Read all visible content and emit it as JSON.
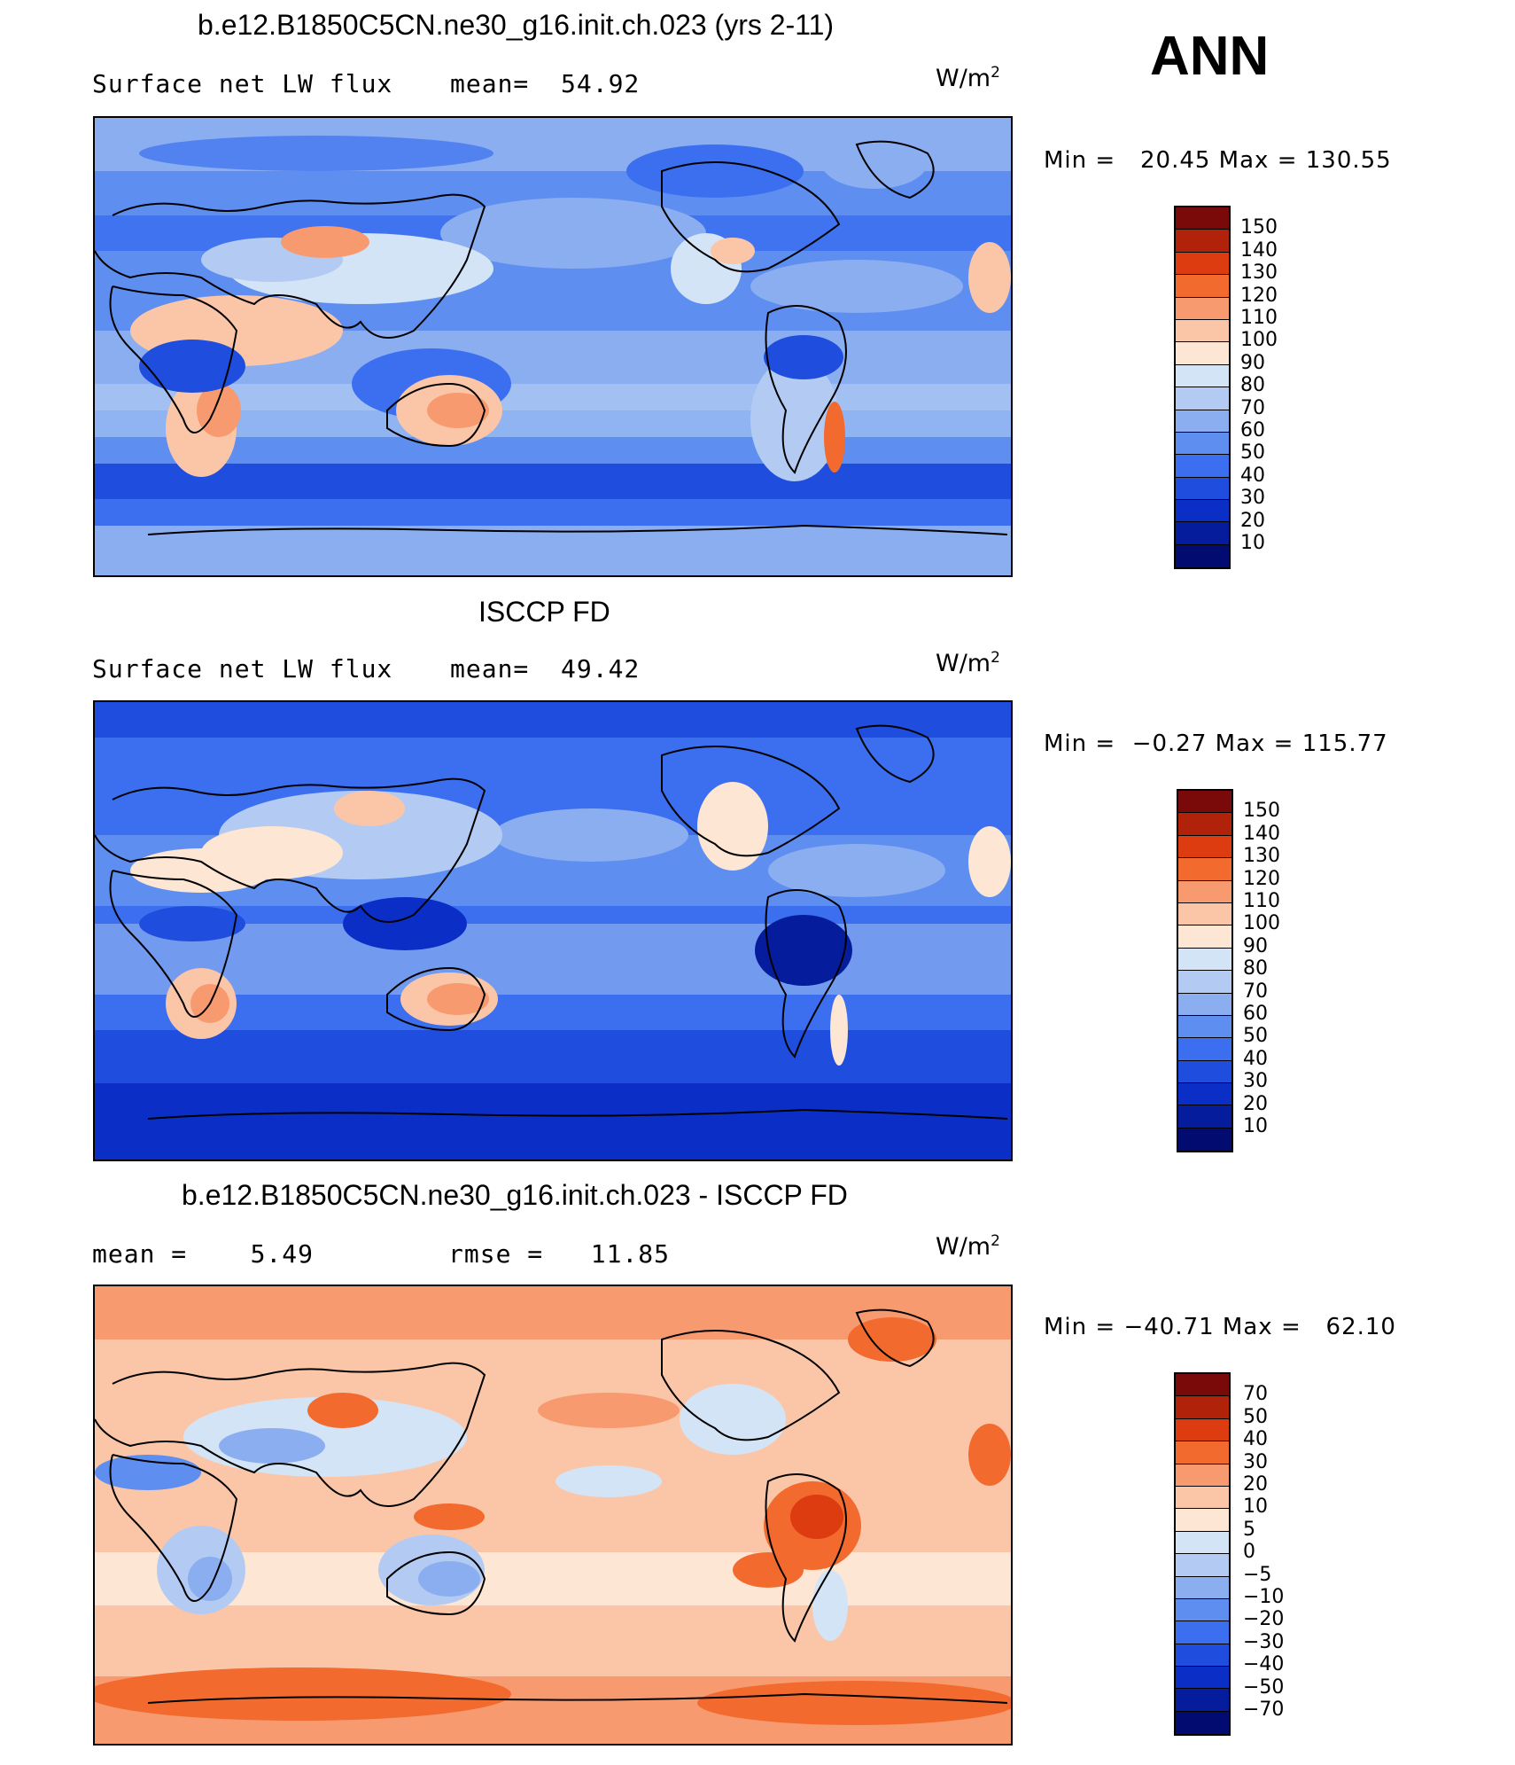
{
  "season_label": "ANN",
  "panels": [
    {
      "title": "b.e12.B1850C5CN.ne30_g16.init.ch.023 (yrs 2-11)",
      "left_text": "Surface net LW flux",
      "right_text": "mean=  54.92",
      "units": "W/m",
      "units_exp": "2",
      "minmax": "Min =   20.45 Max = 130.55",
      "colorbar": {
        "colors": [
          "#7a0a0a",
          "#b0220a",
          "#dd3b10",
          "#f26a2e",
          "#f79a70",
          "#fbc6a8",
          "#fde6d3",
          "#d4e4f7",
          "#b3cbf3",
          "#8aaef0",
          "#5e8ff0",
          "#3b6ff0",
          "#1f4ede",
          "#0b2fc6",
          "#051c9c",
          "#020c70"
        ],
        "labels": [
          "150",
          "140",
          "130",
          "120",
          "110",
          "100",
          "90",
          "80",
          "70",
          "60",
          "50",
          "40",
          "30",
          "20",
          "10"
        ]
      }
    },
    {
      "title": "ISCCP FD",
      "left_text": "Surface net LW flux",
      "right_text": "mean=  49.42",
      "units": "W/m",
      "units_exp": "2",
      "minmax": "Min =  −0.27 Max = 115.77",
      "colorbar": {
        "colors": [
          "#7a0a0a",
          "#b0220a",
          "#dd3b10",
          "#f26a2e",
          "#f79a70",
          "#fbc6a8",
          "#fde6d3",
          "#d4e4f7",
          "#b3cbf3",
          "#8aaef0",
          "#5e8ff0",
          "#3b6ff0",
          "#1f4ede",
          "#0b2fc6",
          "#051c9c",
          "#020c70"
        ],
        "labels": [
          "150",
          "140",
          "130",
          "120",
          "110",
          "100",
          "90",
          "80",
          "70",
          "60",
          "50",
          "40",
          "30",
          "20",
          "10"
        ]
      }
    },
    {
      "title": "b.e12.B1850C5CN.ne30_g16.init.ch.023 - ISCCP FD",
      "left_text": "mean =    5.49",
      "right_text": "rmse =   11.85",
      "units": "W/m",
      "units_exp": "2",
      "minmax": "Min = −40.71 Max =   62.10",
      "colorbar": {
        "colors": [
          "#7a0a0a",
          "#b0220a",
          "#dd3b10",
          "#f26a2e",
          "#f79a70",
          "#fbc6a8",
          "#fde6d3",
          "#d4e4f7",
          "#b3cbf3",
          "#8aaef0",
          "#5e8ff0",
          "#3b6ff0",
          "#1f4ede",
          "#0b2fc6",
          "#051c9c",
          "#020c70"
        ],
        "labels": [
          "70",
          "50",
          "40",
          "30",
          "20",
          "10",
          "5",
          "0",
          "−5",
          "−10",
          "−20",
          "−30",
          "−40",
          "−50",
          "−70"
        ]
      }
    }
  ]
}
